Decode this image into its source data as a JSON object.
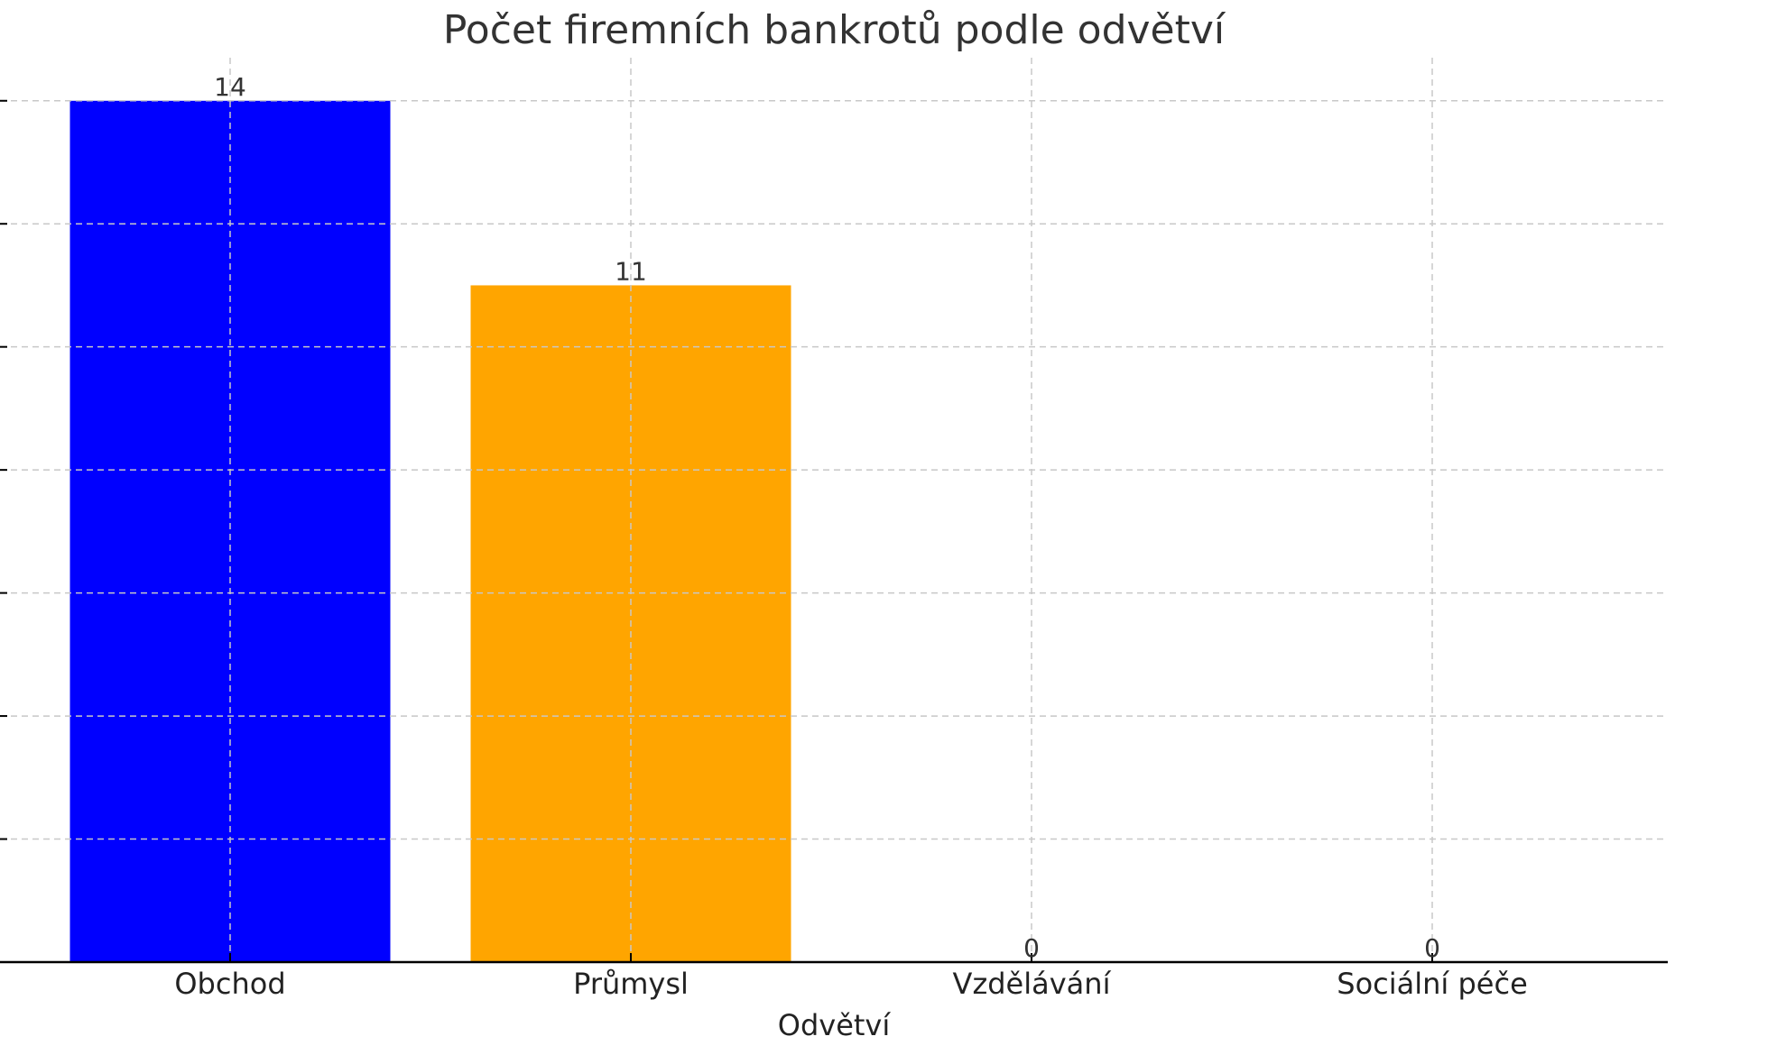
{
  "chart_data": {
    "type": "bar",
    "title": "Počet firemních bankrotů podle odvětví",
    "xlabel": "Odvětví",
    "ylabel": "",
    "categories": [
      "Obchod",
      "Průmysl",
      "Vzdělávání",
      "Sociální péče"
    ],
    "values": [
      14,
      11,
      0,
      0
    ],
    "colors": [
      "#0000ff",
      "#ffa500",
      "#1f77b4",
      "#2ca02c"
    ],
    "ylim": [
      0,
      14.7
    ],
    "yticks": [
      0,
      2,
      4,
      6,
      8,
      10,
      12,
      14
    ],
    "grid": true,
    "legend": "none"
  }
}
